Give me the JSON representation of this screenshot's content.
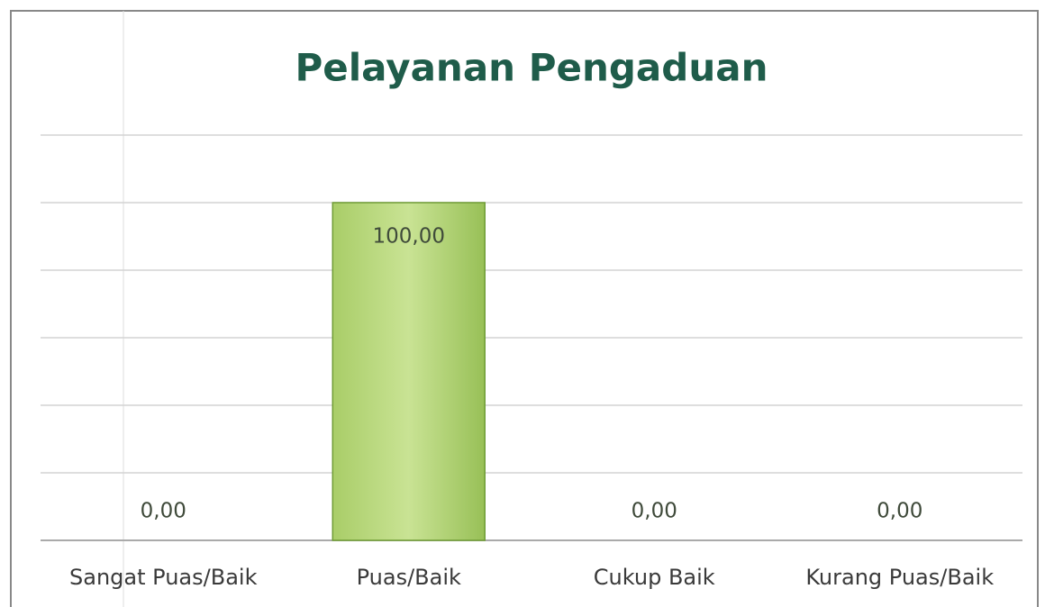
{
  "chart_data": {
    "type": "bar",
    "title": "Pelayanan Pengaduan",
    "categories": [
      "Sangat Puas/Baik",
      "Puas/Baik",
      "Cukup Baik",
      "Kurang Puas/Baik"
    ],
    "values": [
      0,
      100,
      0,
      0
    ],
    "value_labels": [
      "0,00",
      "100,00",
      "0,00",
      "0,00"
    ],
    "color": "#9bc45a",
    "ylim": [
      0,
      120
    ],
    "yticks": [
      0,
      20,
      40,
      60,
      80,
      100,
      120
    ],
    "grid": true
  }
}
